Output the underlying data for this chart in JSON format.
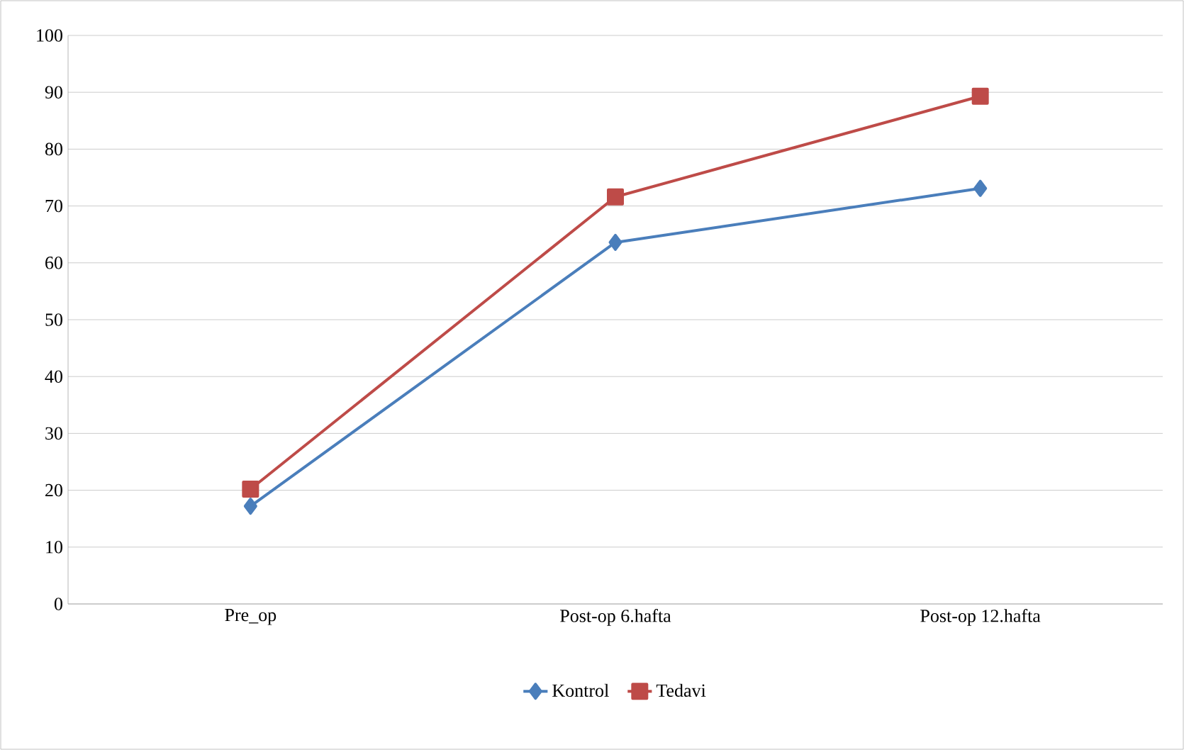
{
  "chart_data": {
    "type": "line",
    "categories": [
      "Pre_op",
      "Post-op 6.hafta",
      "Post-op 12.hafta"
    ],
    "series": [
      {
        "name": "Kontrol",
        "color": "#4a7ebb",
        "values": [
          17.2,
          63.6,
          73.1
        ],
        "marker": "diamond"
      },
      {
        "name": "Tedavi",
        "color": "#be4b48",
        "values": [
          20.2,
          71.6,
          89.3
        ],
        "marker": "square"
      }
    ],
    "ylim": [
      0,
      100
    ],
    "yticks": [
      0,
      10,
      20,
      30,
      40,
      50,
      60,
      70,
      80,
      90,
      100
    ],
    "grid": "y",
    "legend": "bottom",
    "line_style": "solid"
  }
}
